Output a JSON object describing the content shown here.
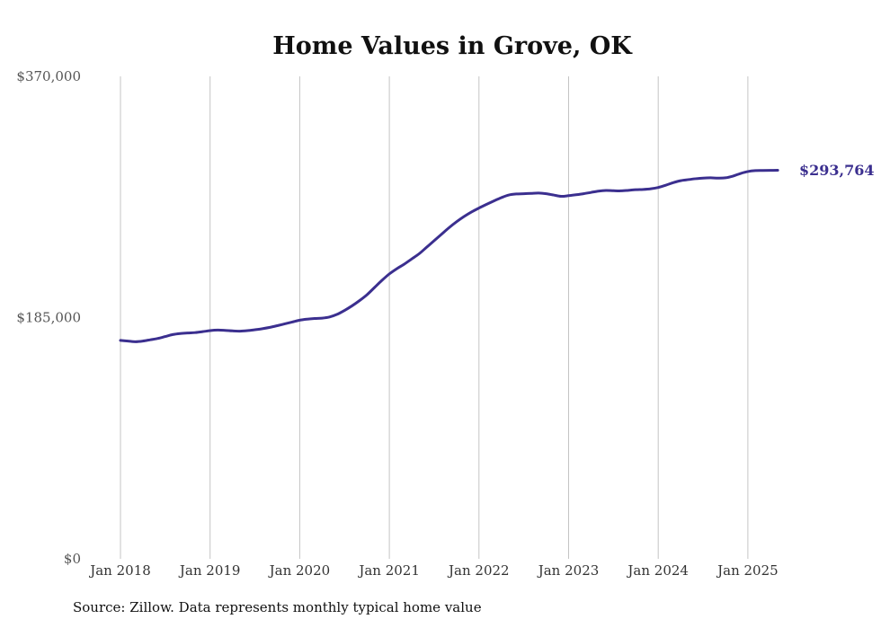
{
  "chart_data": {
    "type": "line",
    "title": "Home Values in Grove, OK",
    "xlabel": "",
    "ylabel": "",
    "ylim": [
      0,
      370000
    ],
    "y_ticks": [
      "$0",
      "$185,000",
      "$370,000"
    ],
    "y_tick_values": [
      0,
      185000,
      370000
    ],
    "x_ticks": [
      "Jan 2018",
      "Jan 2019",
      "Jan 2020",
      "Jan 2021",
      "Jan 2022",
      "Jan 2023",
      "Jan 2024",
      "Jan 2025"
    ],
    "x_tick_years": [
      2018,
      2019,
      2020,
      2021,
      2022,
      2023,
      2024,
      2025
    ],
    "grid": "vertical",
    "line_color": "#3b2f8f",
    "end_label": "$293,764",
    "series": [
      {
        "x": [
          "2018-01",
          "2018-02",
          "2018-03",
          "2018-04",
          "2018-05",
          "2018-06",
          "2018-07",
          "2018-08",
          "2018-09",
          "2018-10",
          "2018-11",
          "2018-12",
          "2019-01",
          "2019-02",
          "2019-03",
          "2019-04",
          "2019-05",
          "2019-06",
          "2019-07",
          "2019-08",
          "2019-09",
          "2019-10",
          "2019-11",
          "2019-12",
          "2020-01",
          "2020-02",
          "2020-03",
          "2020-04",
          "2020-05",
          "2020-06",
          "2020-07",
          "2020-08",
          "2020-09",
          "2020-10",
          "2020-11",
          "2020-12",
          "2021-01",
          "2021-02",
          "2021-03",
          "2021-04",
          "2021-05",
          "2021-06",
          "2021-07",
          "2021-08",
          "2021-09",
          "2021-10",
          "2021-11",
          "2021-12",
          "2022-01",
          "2022-02",
          "2022-03",
          "2022-04",
          "2022-05",
          "2022-06",
          "2022-07",
          "2022-08",
          "2022-09",
          "2022-10",
          "2022-11",
          "2022-12",
          "2023-01",
          "2023-02",
          "2023-03",
          "2023-04",
          "2023-05",
          "2023-06",
          "2023-07",
          "2023-08",
          "2023-09",
          "2023-10",
          "2023-11",
          "2023-12",
          "2024-01",
          "2024-02",
          "2024-03",
          "2024-04",
          "2024-05",
          "2024-06",
          "2024-07",
          "2024-08",
          "2024-09",
          "2024-10",
          "2024-11",
          "2024-12",
          "2025-01",
          "2025-02",
          "2025-03",
          "2025-04",
          "2025-05"
        ],
        "values": [
          167500,
          167000,
          166500,
          167000,
          168000,
          169000,
          170500,
          172000,
          172800,
          173200,
          173500,
          174200,
          175000,
          175400,
          175200,
          174800,
          174600,
          175000,
          175700,
          176500,
          177500,
          178800,
          180200,
          181600,
          183000,
          183800,
          184300,
          184600,
          185500,
          187500,
          190500,
          194000,
          198000,
          202500,
          208000,
          213500,
          218500,
          222500,
          226000,
          230000,
          234000,
          239000,
          244000,
          249000,
          254000,
          258500,
          262500,
          266000,
          269000,
          271800,
          274500,
          277000,
          279000,
          279800,
          280000,
          280300,
          280500,
          280000,
          279000,
          278000,
          278500,
          279200,
          280000,
          281000,
          282000,
          282500,
          282300,
          282200,
          282600,
          283100,
          283300,
          283800,
          284800,
          286500,
          288500,
          290000,
          290800,
          291500,
          292000,
          292200,
          292000,
          292200,
          293500,
          295500,
          297000,
          297700,
          297800,
          297900,
          298000
        ],
        "color": "#3b2f8f"
      }
    ]
  },
  "source_note": "Source: Zillow. Data represents monthly typical home value"
}
